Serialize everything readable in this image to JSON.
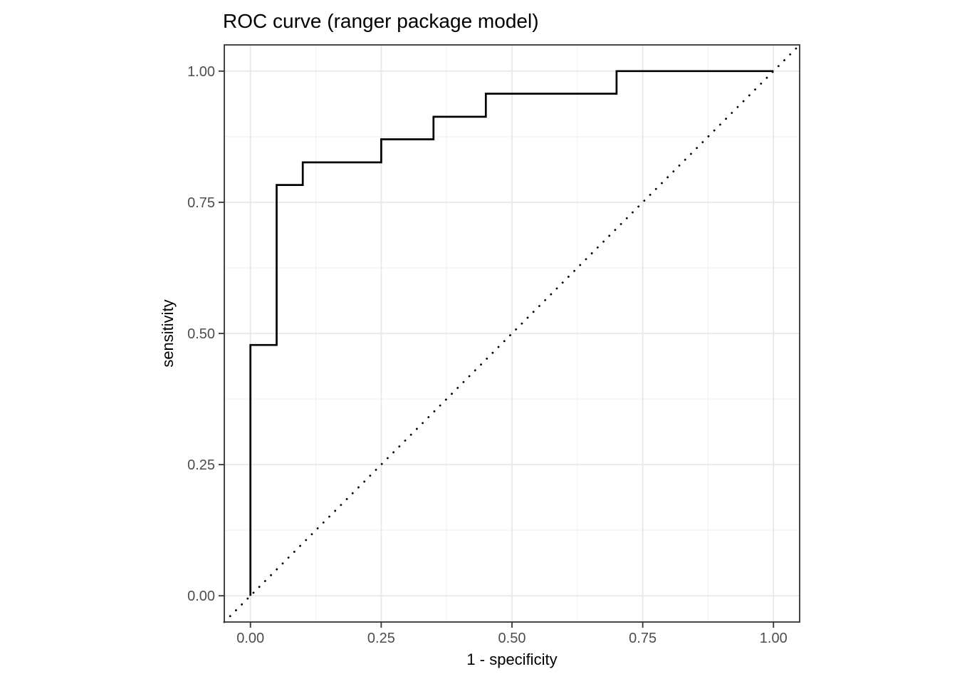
{
  "chart_data": {
    "type": "line",
    "title": "ROC curve (ranger package model)",
    "xlabel": "1 - specificity",
    "ylabel": "sensitivity",
    "xlim": [
      -0.05,
      1.05
    ],
    "ylim": [
      -0.05,
      1.05
    ],
    "x_ticks": [
      0.0,
      0.25,
      0.5,
      0.75,
      1.0
    ],
    "y_ticks": [
      0.0,
      0.25,
      0.5,
      0.75,
      1.0
    ],
    "x_tick_labels": [
      "0.00",
      "0.25",
      "0.50",
      "0.75",
      "1.00"
    ],
    "y_tick_labels": [
      "0.00",
      "0.25",
      "0.50",
      "0.75",
      "1.00"
    ],
    "x_minor_ticks": [
      0.125,
      0.375,
      0.625,
      0.875
    ],
    "y_minor_ticks": [
      0.125,
      0.375,
      0.625,
      0.875
    ],
    "grid": true,
    "legend": false,
    "panel_background": "#ffffff",
    "series": [
      {
        "name": "ROC step curve",
        "style": "solid",
        "color": "#000000",
        "points": [
          [
            0.0,
            0.0
          ],
          [
            0.0,
            0.478
          ],
          [
            0.05,
            0.478
          ],
          [
            0.05,
            0.783
          ],
          [
            0.1,
            0.783
          ],
          [
            0.1,
            0.826
          ],
          [
            0.25,
            0.826
          ],
          [
            0.25,
            0.87
          ],
          [
            0.35,
            0.87
          ],
          [
            0.35,
            0.913
          ],
          [
            0.45,
            0.913
          ],
          [
            0.45,
            0.957
          ],
          [
            0.7,
            0.957
          ],
          [
            0.7,
            1.0
          ],
          [
            1.0,
            1.0
          ]
        ]
      },
      {
        "name": "chance diagonal",
        "style": "dotted",
        "color": "#000000",
        "points": [
          [
            -0.05,
            -0.05
          ],
          [
            1.05,
            1.05
          ]
        ]
      }
    ],
    "colors": {
      "grid_major": "#e8e8e8",
      "grid_minor": "#efefef",
      "panel_border": "#333333",
      "tick_label": "#4d4d4d",
      "axis_title": "#000000",
      "title": "#000000"
    }
  }
}
